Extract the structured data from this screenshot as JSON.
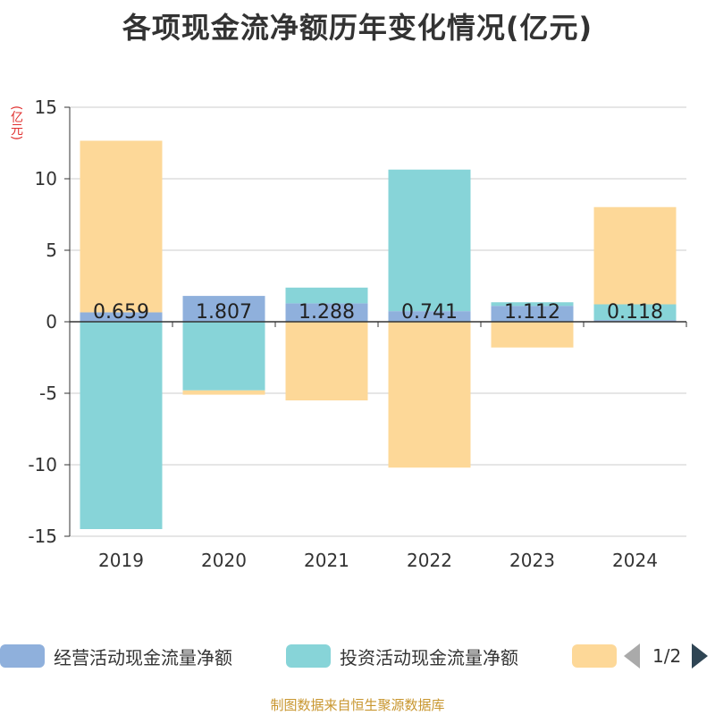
{
  "chart_data": {
    "type": "bar",
    "stacked": true,
    "title": "各项现金流净额历年变化情况(亿元)",
    "unit_label": "(亿元)",
    "categories": [
      "2019",
      "2020",
      "2021",
      "2022",
      "2023",
      "2024"
    ],
    "ylim": [
      -15,
      15
    ],
    "yticks": [
      15,
      10,
      5,
      0,
      -5,
      -10,
      -15
    ],
    "grid": true,
    "series": [
      {
        "name": "经营活动现金流量净额",
        "color": "#8fb0dc",
        "values": [
          0.659,
          1.807,
          1.288,
          0.741,
          1.112,
          0.118
        ],
        "labels": [
          "0.659",
          "1.807",
          "1.288",
          "0.741",
          "1.112",
          "0.118"
        ]
      },
      {
        "name": "投资活动现金流量净额",
        "color": "#87d4d8",
        "values": [
          -14.5,
          -4.8,
          1.1,
          9.9,
          0.25,
          1.1
        ]
      },
      {
        "name": "",
        "color": "#fdd898",
        "values": [
          12.0,
          -0.3,
          -5.5,
          -10.2,
          -1.8,
          6.8
        ]
      }
    ],
    "legend_position": "bottom"
  },
  "legend": {
    "items": [
      "经营活动现金流量净额",
      "投资活动现金流量净额",
      ""
    ],
    "page": "1/2"
  },
  "footer": "制图数据来自恒生聚源数据库"
}
